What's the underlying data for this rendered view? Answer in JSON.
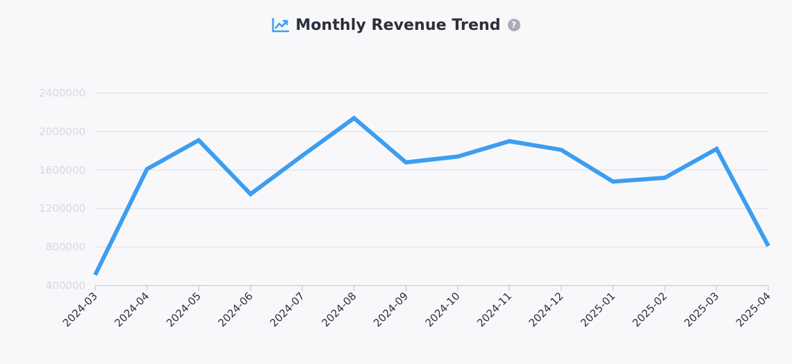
{
  "header": {
    "title": "Monthly Revenue Trend",
    "title_icon": "trending-up-icon",
    "help_icon": "question-circle-icon",
    "help_glyph": "?"
  },
  "colors": {
    "line": "#3d9df0",
    "title_icon": "#3d9df0",
    "grid": "#dcdde3",
    "axis": "#d0d2da",
    "ytick": "#d6d8e2",
    "xtick": "#2b2f3e",
    "background": "#f8f8fa"
  },
  "chart_data": {
    "type": "line",
    "title": "Monthly Revenue Trend",
    "xlabel": "",
    "ylabel": "",
    "grid": true,
    "legend": "none",
    "ylim": [
      400000,
      2400000
    ],
    "yticks": [
      "400000",
      "800000",
      "1200000",
      "1600000",
      "2000000",
      "2400000"
    ],
    "x": [
      "2024-03",
      "2024-04",
      "2024-05",
      "2024-06",
      "2024-07",
      "2024-08",
      "2024-09",
      "2024-10",
      "2024-11",
      "2024-12",
      "2025-01",
      "2025-02",
      "2025-03",
      "2025-04"
    ],
    "series": [
      {
        "values": [
          510000,
          1610000,
          1910000,
          1350000,
          1750000,
          2140000,
          1680000,
          1740000,
          1900000,
          1810000,
          1480000,
          1520000,
          1820000,
          810000
        ]
      }
    ]
  }
}
